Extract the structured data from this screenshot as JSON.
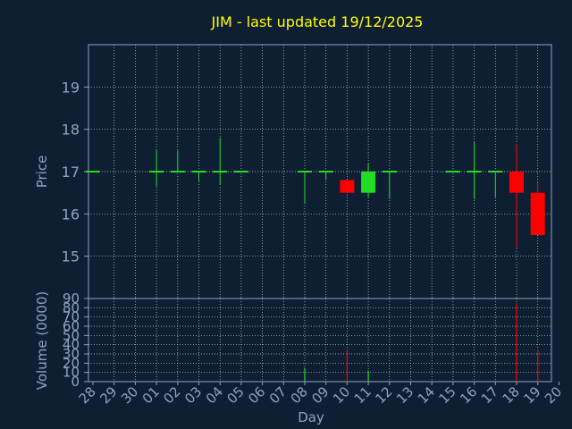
{
  "chart_data": {
    "type": "candlestick",
    "title": "JIM - last updated 19/12/2025",
    "xlabel": "Day",
    "price_panel": {
      "ylabel": "Price",
      "ylim": [
        14,
        20
      ],
      "yticks": [
        "15",
        "16",
        "17",
        "18",
        "19"
      ],
      "grid": true
    },
    "volume_panel": {
      "ylabel": "Volume (0000)",
      "ylim": [
        0,
        90
      ],
      "yticks": [
        "0",
        "10",
        "20",
        "30",
        "40",
        "50",
        "60",
        "70",
        "80",
        "90"
      ],
      "grid": true
    },
    "categories": [
      "28",
      "29",
      "30",
      "01",
      "02",
      "03",
      "04",
      "05",
      "06",
      "07",
      "08",
      "09",
      "10",
      "11",
      "12",
      "13",
      "14",
      "15",
      "16",
      "17",
      "18",
      "19",
      "20"
    ],
    "candles": [
      {
        "day": "28",
        "open": 17.0,
        "high": 17.0,
        "low": 17.0,
        "close": 17.0
      },
      {
        "day": "01",
        "open": 17.0,
        "high": 17.5,
        "low": 16.65,
        "close": 17.0
      },
      {
        "day": "02",
        "open": 17.0,
        "high": 17.5,
        "low": 17.0,
        "close": 17.0
      },
      {
        "day": "03",
        "open": 17.0,
        "high": 17.0,
        "low": 16.75,
        "close": 17.0
      },
      {
        "day": "04",
        "open": 17.0,
        "high": 17.8,
        "low": 16.7,
        "close": 17.0
      },
      {
        "day": "05",
        "open": 17.0,
        "high": 17.0,
        "low": 17.0,
        "close": 17.0
      },
      {
        "day": "08",
        "open": 17.0,
        "high": 17.0,
        "low": 16.25,
        "close": 17.0
      },
      {
        "day": "09",
        "open": 17.0,
        "high": 17.0,
        "low": 16.8,
        "close": 17.0
      },
      {
        "day": "10",
        "open": 16.8,
        "high": 16.8,
        "low": 16.5,
        "close": 16.5
      },
      {
        "day": "11",
        "open": 16.5,
        "high": 17.2,
        "low": 16.4,
        "close": 17.0
      },
      {
        "day": "12",
        "open": 17.0,
        "high": 17.0,
        "low": 16.35,
        "close": 17.0
      },
      {
        "day": "15",
        "open": 17.0,
        "high": 17.0,
        "low": 17.0,
        "close": 17.0
      },
      {
        "day": "16",
        "open": 17.0,
        "high": 17.7,
        "low": 16.35,
        "close": 17.0
      },
      {
        "day": "17",
        "open": 17.0,
        "high": 17.0,
        "low": 16.4,
        "close": 17.0
      },
      {
        "day": "18",
        "open": 17.0,
        "high": 17.65,
        "low": 15.2,
        "close": 16.5
      },
      {
        "day": "19",
        "open": 16.5,
        "high": 16.75,
        "low": 15.5,
        "close": 15.5
      }
    ],
    "volume": [
      {
        "day": "08",
        "value": 15
      },
      {
        "day": "10",
        "value": 35
      },
      {
        "day": "11",
        "value": 12
      },
      {
        "day": "18",
        "value": 85
      },
      {
        "day": "19",
        "value": 35
      }
    ],
    "colors": {
      "background": "#0f1f33",
      "plot_background": "#0f1f33",
      "axis": "#8fa3bf",
      "grid": "#c8d2e0",
      "title": "#ffff00",
      "label": "#8fa3bf",
      "up": "#22dd22",
      "down": "#ff0000",
      "flat": "#22dd22"
    }
  }
}
